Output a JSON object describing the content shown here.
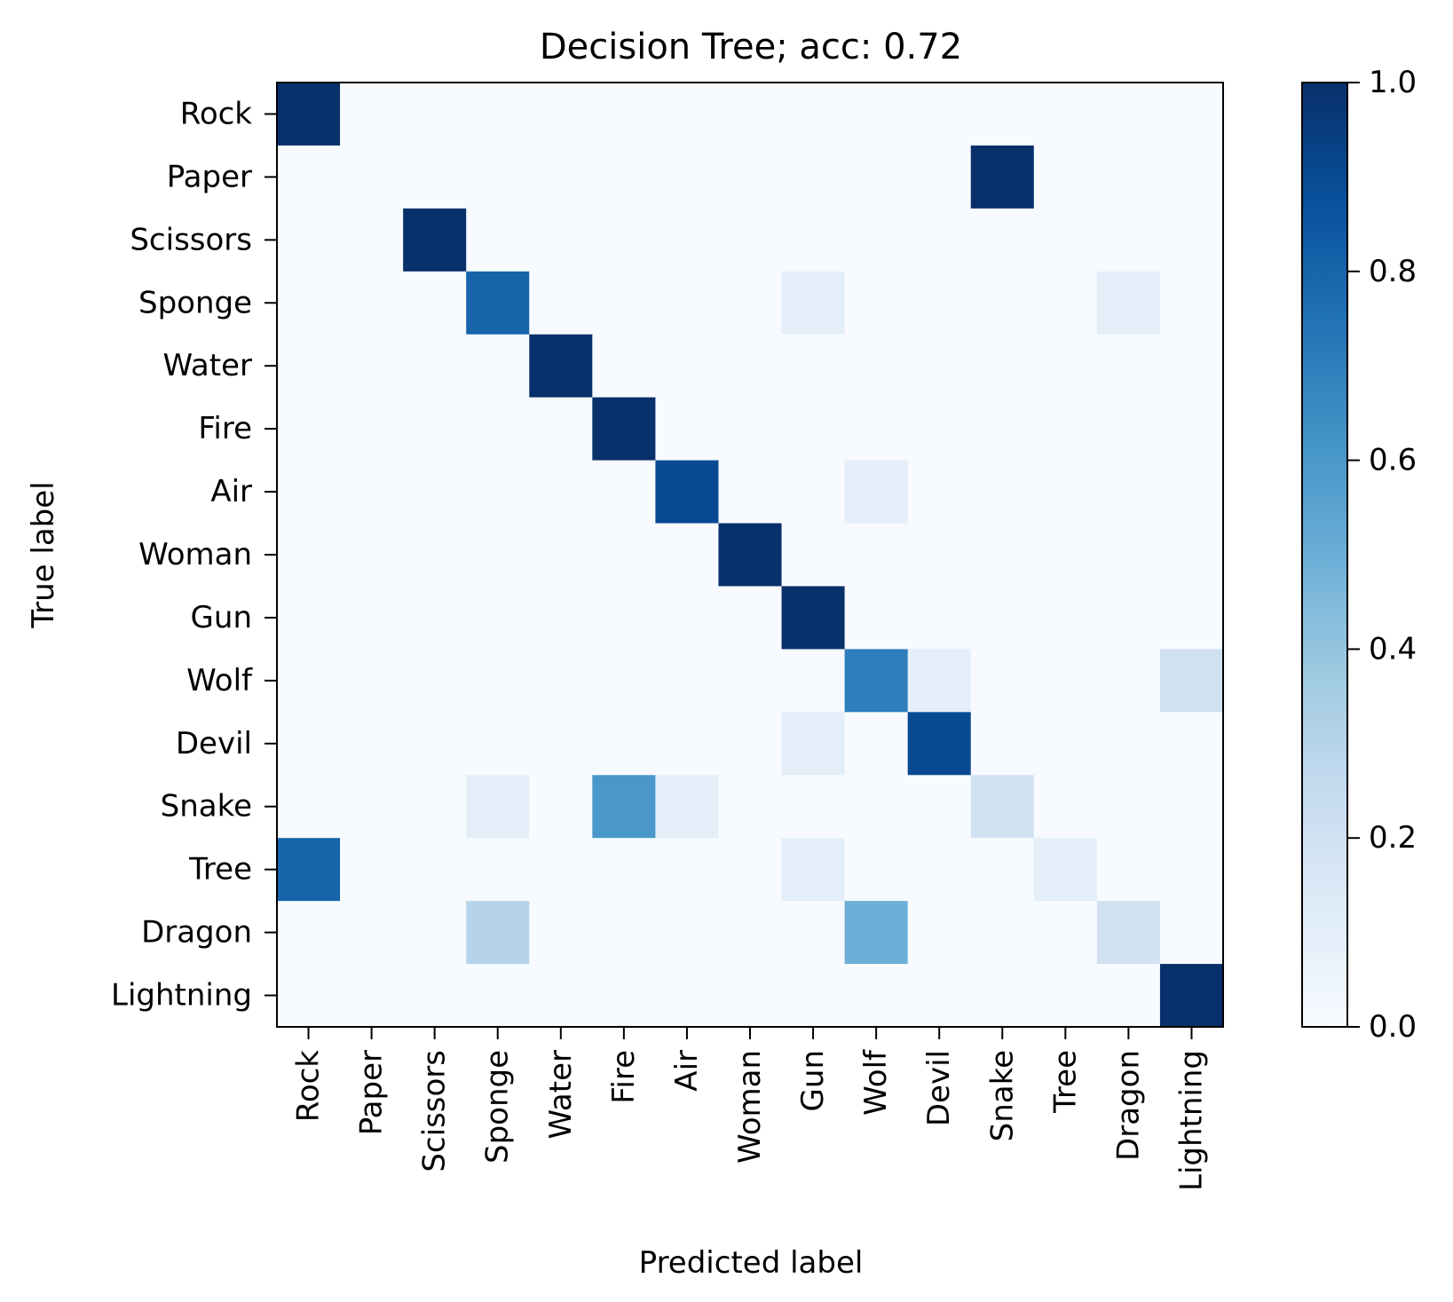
{
  "chart_data": {
    "type": "heatmap",
    "title": "Decision Tree; acc: 0.72",
    "xlabel": "Predicted label",
    "ylabel": "True label",
    "x_categories": [
      "Rock",
      "Paper",
      "Scissors",
      "Sponge",
      "Water",
      "Fire",
      "Air",
      "Woman",
      "Gun",
      "Wolf",
      "Devil",
      "Snake",
      "Tree",
      "Dragon",
      "Lightning"
    ],
    "y_categories": [
      "Rock",
      "Paper",
      "Scissors",
      "Sponge",
      "Water",
      "Fire",
      "Air",
      "Woman",
      "Gun",
      "Wolf",
      "Devil",
      "Snake",
      "Tree",
      "Dragon",
      "Lightning"
    ],
    "values": [
      [
        1.0,
        0,
        0,
        0,
        0,
        0,
        0,
        0,
        0,
        0,
        0,
        0,
        0,
        0,
        0
      ],
      [
        0,
        0,
        0,
        0,
        0,
        0,
        0,
        0,
        0,
        0,
        0,
        1.0,
        0,
        0,
        0
      ],
      [
        0,
        0,
        1.0,
        0,
        0,
        0,
        0,
        0,
        0,
        0,
        0,
        0,
        0,
        0,
        0
      ],
      [
        0,
        0,
        0,
        0.8,
        0,
        0,
        0,
        0,
        0.1,
        0,
        0,
        0,
        0,
        0.1,
        0
      ],
      [
        0,
        0,
        0,
        0,
        1.0,
        0,
        0,
        0,
        0,
        0,
        0,
        0,
        0,
        0,
        0
      ],
      [
        0,
        0,
        0,
        0,
        0,
        1.0,
        0,
        0,
        0,
        0,
        0,
        0,
        0,
        0,
        0
      ],
      [
        0,
        0,
        0,
        0,
        0,
        0,
        0.9,
        0,
        0,
        0.1,
        0,
        0,
        0,
        0,
        0
      ],
      [
        0,
        0,
        0,
        0,
        0,
        0,
        0,
        1.0,
        0,
        0,
        0,
        0,
        0,
        0,
        0
      ],
      [
        0,
        0,
        0,
        0,
        0,
        0,
        0,
        0,
        1.0,
        0,
        0,
        0,
        0,
        0,
        0
      ],
      [
        0,
        0,
        0,
        0,
        0,
        0,
        0,
        0,
        0,
        0.7,
        0.1,
        0,
        0,
        0,
        0.2
      ],
      [
        0,
        0,
        0,
        0,
        0,
        0,
        0,
        0,
        0.1,
        0,
        0.9,
        0,
        0,
        0,
        0
      ],
      [
        0,
        0,
        0,
        0.1,
        0,
        0.6,
        0.1,
        0,
        0,
        0,
        0,
        0.2,
        0,
        0,
        0
      ],
      [
        0.8,
        0,
        0,
        0,
        0,
        0,
        0,
        0,
        0.1,
        0,
        0,
        0,
        0.1,
        0,
        0
      ],
      [
        0,
        0,
        0,
        0.3,
        0,
        0,
        0,
        0,
        0,
        0.5,
        0,
        0,
        0,
        0.2,
        0
      ],
      [
        0,
        0,
        0,
        0,
        0,
        0,
        0,
        0,
        0,
        0,
        0,
        0,
        0,
        0,
        1.0
      ]
    ],
    "colorbar": {
      "min": 0.0,
      "max": 1.0,
      "ticks": [
        "0.0",
        "0.2",
        "0.4",
        "0.6",
        "0.8",
        "1.0"
      ],
      "colormap": "Blues"
    },
    "grid": false
  }
}
